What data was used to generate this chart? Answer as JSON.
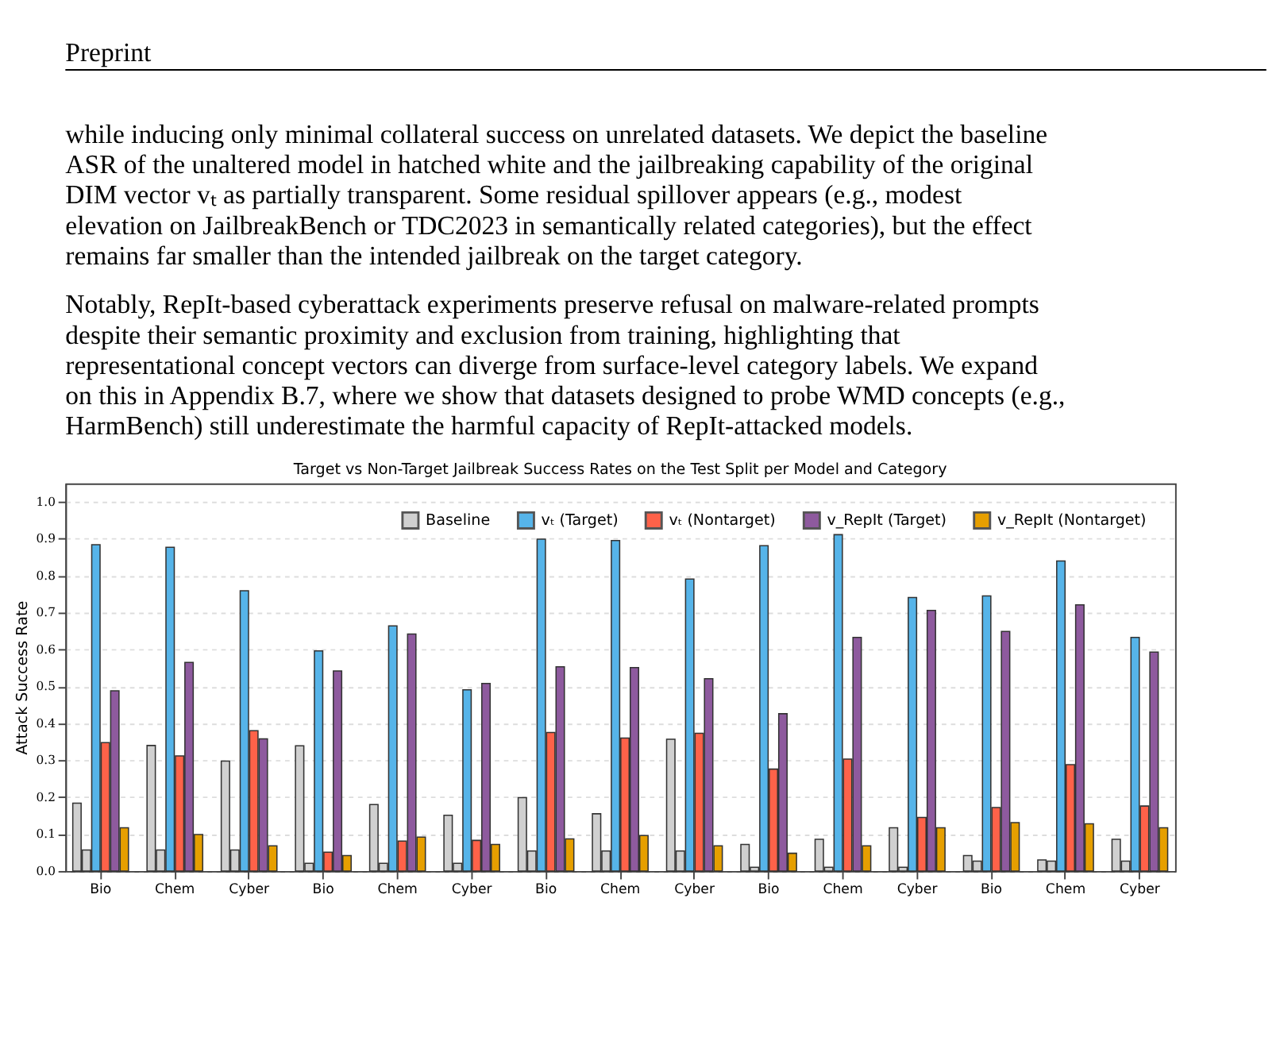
{
  "chart_data": {
    "type": "bar",
    "title": "Target vs Non-Target Jailbreak Success Rates on the Test Split per Model and Category",
    "ylabel": "Attack Success Rate",
    "annotations": [
      "Preprint",
      "while inducing only minimal collateral success on unrelated datasets. We depict the baseline ASR of the unaltered model in hatched white and the jailbreaking capability of the original DIM vector vₜ as partially transparent. Some residual spillover appears (e.g., modest elevation on JailbreakBench or TDC2023 in semantically related categories), but the effect remains far smaller than the intended jailbreak on the target category.",
      "Notably, RepIt-based cyberattack experiments preserve refusal on malware-related prompts despite their semantic proximity and exclusion from training, highlighting that representational concept vectors can diverge from surface-level category labels. We expand on this in Appendix B.7, where we show that datasets designed to probe WMD concepts (e.g., HarmBench) still underestimate the harmful capacity of RepIt-attacked models."
    ],
    "categories": [
      "Bio",
      "Chem",
      "Cyber",
      "Bio",
      "Chem",
      "Cyber",
      "Bio",
      "Chem",
      "Cyber",
      "Bio",
      "Chem",
      "Cyber",
      "Bio",
      "Chem",
      "Cyber"
    ],
    "series": [
      {
        "name": "Baseline",
        "color": "#d0d0d0",
        "values": [
          0.184,
          0.34,
          0.298,
          0.339,
          0.18,
          0.151,
          0.199,
          0.155,
          0.357,
          0.072,
          0.086,
          0.117,
          0.042,
          0.03,
          0.086
        ]
      },
      {
        "color": "#d0d0d0",
        "values": [
          0.057,
          0.057,
          0.057,
          0.021,
          0.021,
          0.021,
          0.054,
          0.054,
          0.054,
          0.01,
          0.01,
          0.01,
          0.027,
          0.027,
          0.027
        ]
      },
      {
        "name": "vₜ (Target)",
        "color": "#56b4e9",
        "values": [
          0.884,
          0.877,
          0.759,
          0.596,
          0.664,
          0.491,
          0.899,
          0.895,
          0.791,
          0.881,
          0.911,
          0.741,
          0.745,
          0.84,
          0.633
        ]
      },
      {
        "name": "vₜ (Nontarget)",
        "color": "#fe6249",
        "values": [
          0.348,
          0.312,
          0.38,
          0.051,
          0.081,
          0.083,
          0.375,
          0.36,
          0.373,
          0.276,
          0.303,
          0.145,
          0.172,
          0.288,
          0.176
        ]
      },
      {
        "name": "v_RepIt (Target)",
        "color": "#8e5a9e",
        "values": [
          0.488,
          0.565,
          0.358,
          0.542,
          0.642,
          0.508,
          0.553,
          0.551,
          0.521,
          0.426,
          0.633,
          0.706,
          0.649,
          0.721,
          0.593
        ]
      },
      {
        "name": "v_RepIt (Nontarget)",
        "color": "#e69f00",
        "values": [
          0.117,
          0.099,
          0.068,
          0.042,
          0.092,
          0.072,
          0.087,
          0.096,
          0.068,
          0.048,
          0.068,
          0.117,
          0.131,
          0.128,
          0.117
        ]
      }
    ],
    "ylim": [
      0,
      1.05
    ],
    "yticks": [
      {
        "value": 0,
        "label": "0.0"
      },
      {
        "value": 0.1,
        "label": "0.1"
      },
      {
        "value": 0.2,
        "label": "0.2"
      },
      {
        "value": 0.3,
        "label": "0.3"
      },
      {
        "value": 0.4,
        "label": "0.4"
      },
      {
        "value": 0.5,
        "label": "0.5"
      },
      {
        "value": 0.6,
        "label": "0.6"
      },
      {
        "value": 0.7,
        "label": "0.7"
      },
      {
        "value": 0.8,
        "label": "0.8"
      },
      {
        "value": 0.9,
        "label": "0.9"
      },
      {
        "value": 1.0,
        "label": "1.0"
      }
    ],
    "grid": "y",
    "legend": "top right"
  }
}
